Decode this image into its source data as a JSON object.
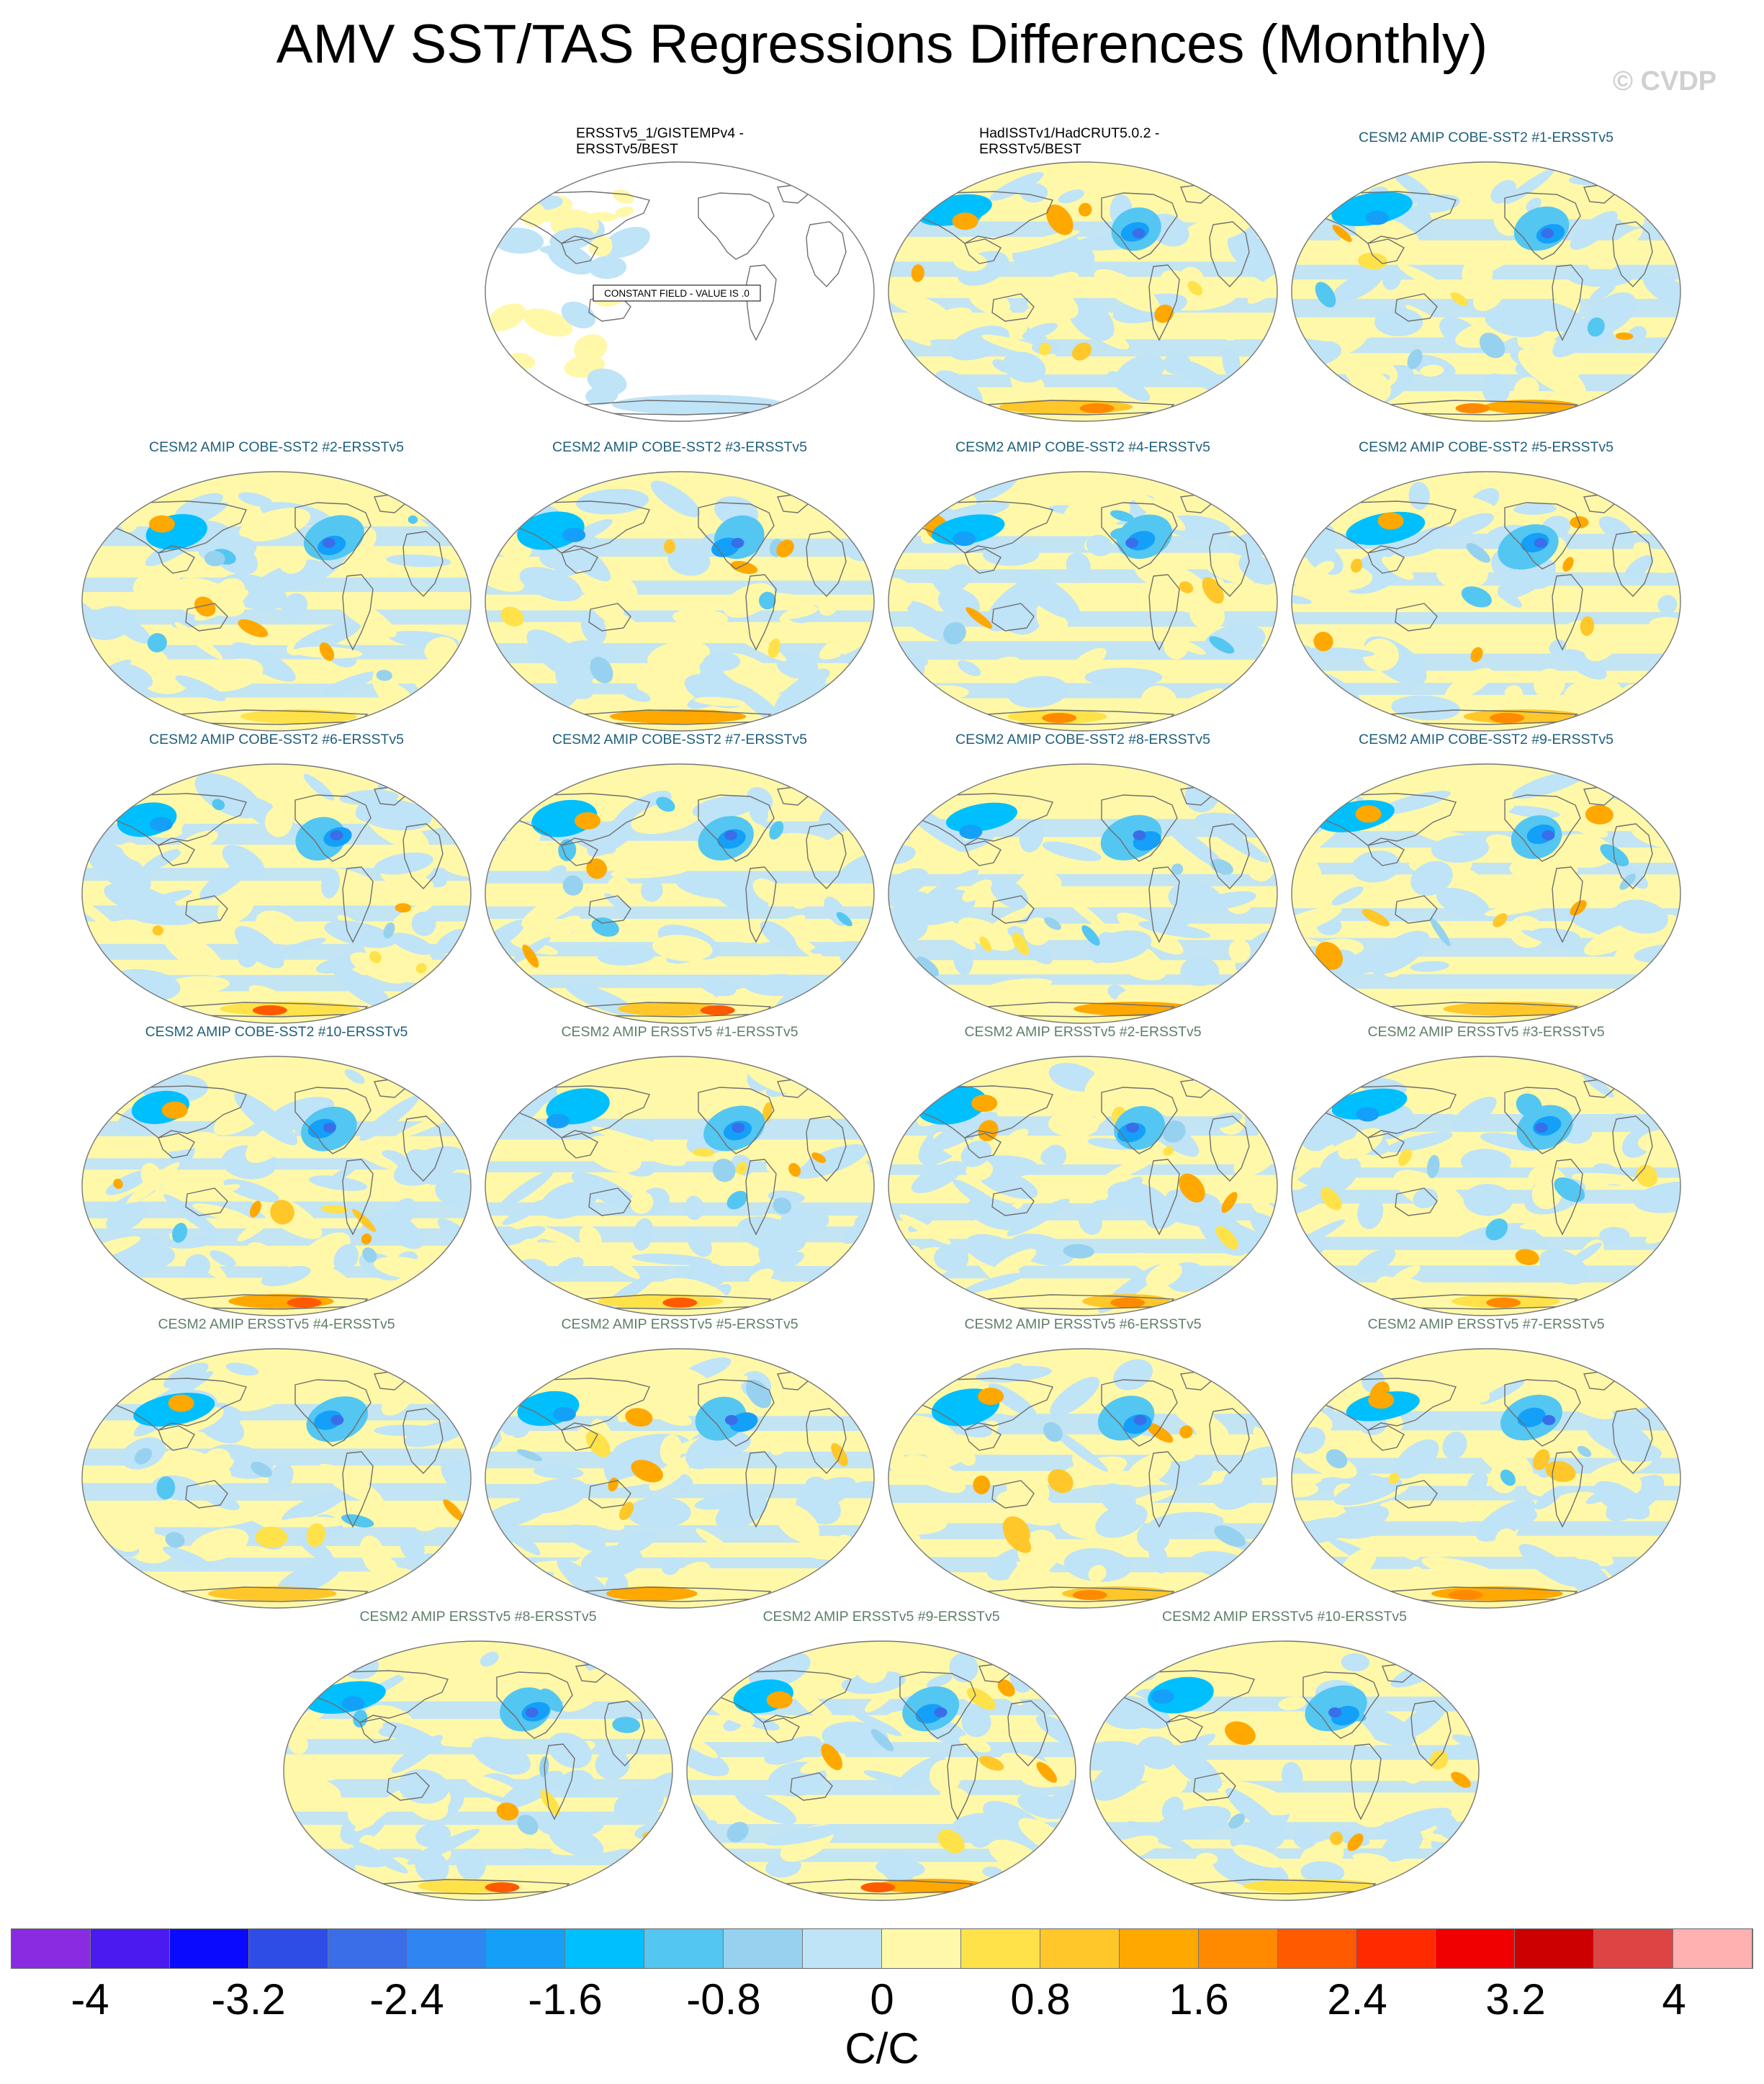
{
  "title": "AMV SST/TAS Regressions Differences (Monthly)",
  "watermark": "© CVDP",
  "panels": [
    {
      "label": "ERSSTv5_1/GISTEMPv4 -\nERSSTv5/BEST",
      "style": "black",
      "constant": true,
      "constant_label": "CONSTANT FIELD - VALUE IS .0"
    },
    {
      "label": "HadISSTv1/HadCRUT5.0.2 -\nERSSTv5/BEST",
      "style": "black",
      "seed": 2
    },
    {
      "label": "CESM2 AMIP COBE-SST2 #1-ERSSTv5",
      "style": "blue",
      "seed": 3
    },
    {
      "label": "CESM2 AMIP COBE-SST2 #2-ERSSTv5",
      "style": "blue",
      "seed": 4
    },
    {
      "label": "CESM2 AMIP COBE-SST2 #3-ERSSTv5",
      "style": "blue",
      "seed": 5
    },
    {
      "label": "CESM2 AMIP COBE-SST2 #4-ERSSTv5",
      "style": "blue",
      "seed": 6
    },
    {
      "label": "CESM2 AMIP COBE-SST2 #5-ERSSTv5",
      "style": "blue",
      "seed": 7
    },
    {
      "label": "CESM2 AMIP COBE-SST2 #6-ERSSTv5",
      "style": "blue",
      "seed": 8
    },
    {
      "label": "CESM2 AMIP COBE-SST2 #7-ERSSTv5",
      "style": "blue",
      "seed": 9
    },
    {
      "label": "CESM2 AMIP COBE-SST2 #8-ERSSTv5",
      "style": "blue",
      "seed": 10
    },
    {
      "label": "CESM2 AMIP COBE-SST2 #9-ERSSTv5",
      "style": "blue",
      "seed": 11
    },
    {
      "label": "CESM2 AMIP COBE-SST2 #10-ERSSTv5",
      "style": "blue",
      "seed": 12
    },
    {
      "label": "CESM2 AMIP ERSSTv5 #1-ERSSTv5",
      "style": "green",
      "seed": 13
    },
    {
      "label": "CESM2 AMIP ERSSTv5 #2-ERSSTv5",
      "style": "green",
      "seed": 14
    },
    {
      "label": "CESM2 AMIP ERSSTv5 #3-ERSSTv5",
      "style": "green",
      "seed": 15
    },
    {
      "label": "CESM2 AMIP ERSSTv5 #4-ERSSTv5",
      "style": "green",
      "seed": 16
    },
    {
      "label": "CESM2 AMIP ERSSTv5 #5-ERSSTv5",
      "style": "green",
      "seed": 17
    },
    {
      "label": "CESM2 AMIP ERSSTv5 #6-ERSSTv5",
      "style": "green",
      "seed": 18
    },
    {
      "label": "CESM2 AMIP ERSSTv5 #7-ERSSTv5",
      "style": "green",
      "seed": 19
    },
    {
      "label": "CESM2 AMIP ERSSTv5 #8-ERSSTv5",
      "style": "green",
      "seed": 20
    },
    {
      "label": "CESM2 AMIP ERSSTv5 #9-ERSSTv5",
      "style": "green",
      "seed": 21
    },
    {
      "label": "CESM2 AMIP ERSSTv5 #10-ERSSTv5",
      "style": "green",
      "seed": 22
    }
  ],
  "colorbar": {
    "colors": [
      "#8a2be2",
      "#4a1af0",
      "#0a0aff",
      "#2e4de6",
      "#3a6ee8",
      "#2f86f2",
      "#14a0f8",
      "#00bfff",
      "#54c6f2",
      "#96d2ef",
      "#bfe3f7",
      "#fff8a8",
      "#ffe24a",
      "#ffc72a",
      "#ffa800",
      "#ff8a00",
      "#ff5a00",
      "#ff2a00",
      "#f00000",
      "#cc0000",
      "#dd4444",
      "#ffb0b0"
    ],
    "labels": [
      "-4",
      "-3.2",
      "-2.4",
      "-1.6",
      "-0.8",
      "0",
      "0.8",
      "1.6",
      "2.4",
      "3.2",
      "4"
    ],
    "units": "C/C"
  }
}
